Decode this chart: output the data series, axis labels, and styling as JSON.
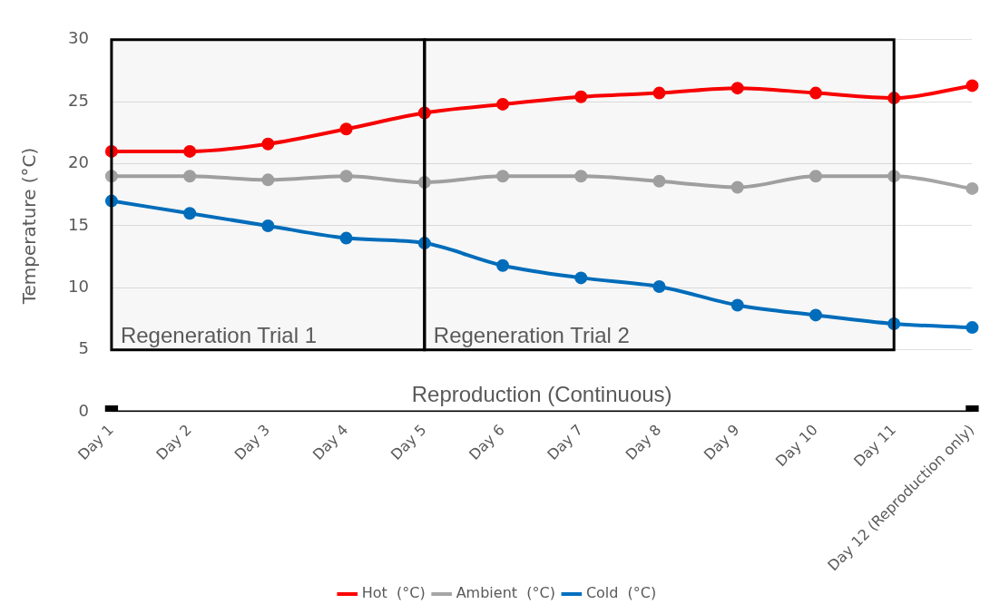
{
  "chart_data": {
    "type": "line",
    "ylabel": "Temperature (°C)",
    "categories": [
      "Day 1",
      "Day 2",
      "Day 3",
      "Day 4",
      "Day 5",
      "Day 6",
      "Day 7",
      "Day 8",
      "Day 9",
      "Day 10",
      "Day 11",
      "Day 12 (Reproduction only)"
    ],
    "series": [
      {
        "name": "Hot  (°C)",
        "color": "#ff0000",
        "values": [
          21.0,
          21.0,
          21.6,
          22.8,
          24.1,
          24.8,
          25.4,
          25.7,
          26.1,
          25.7,
          25.3,
          26.3
        ]
      },
      {
        "name": "Ambient  (°C)",
        "color": "#a5a5a5",
        "values": [
          19.0,
          19.0,
          18.7,
          19.0,
          18.5,
          19.0,
          19.0,
          18.6,
          18.1,
          19.0,
          19.0,
          18.0
        ]
      },
      {
        "name": "Cold  (°C)",
        "color": "#0070c0",
        "values": [
          17.0,
          16.0,
          15.0,
          14.0,
          13.6,
          11.8,
          10.8,
          10.1,
          8.6,
          7.8,
          7.1,
          6.8
        ]
      },
      {
        "name": "Reproduction (Continuous)",
        "color": "#000000",
        "marker": "square",
        "values": [
          0,
          null,
          null,
          null,
          null,
          null,
          null,
          null,
          null,
          null,
          null,
          0
        ]
      }
    ],
    "ylim": [
      0,
      30
    ],
    "yticks": [
      0,
      5,
      10,
      15,
      20,
      25,
      30
    ],
    "grid": "y",
    "legend": "bottom",
    "marker": "circle",
    "line_style": "solid",
    "bands": [
      {
        "axis": "x",
        "from": "Day 1",
        "to": "Day 5",
        "label": "Regeneration Trial 1",
        "color": "#000000"
      },
      {
        "axis": "x",
        "from": "Day 5",
        "to": "Day 11",
        "label": "Regeneration Trial 2",
        "color": "#000000"
      }
    ]
  }
}
